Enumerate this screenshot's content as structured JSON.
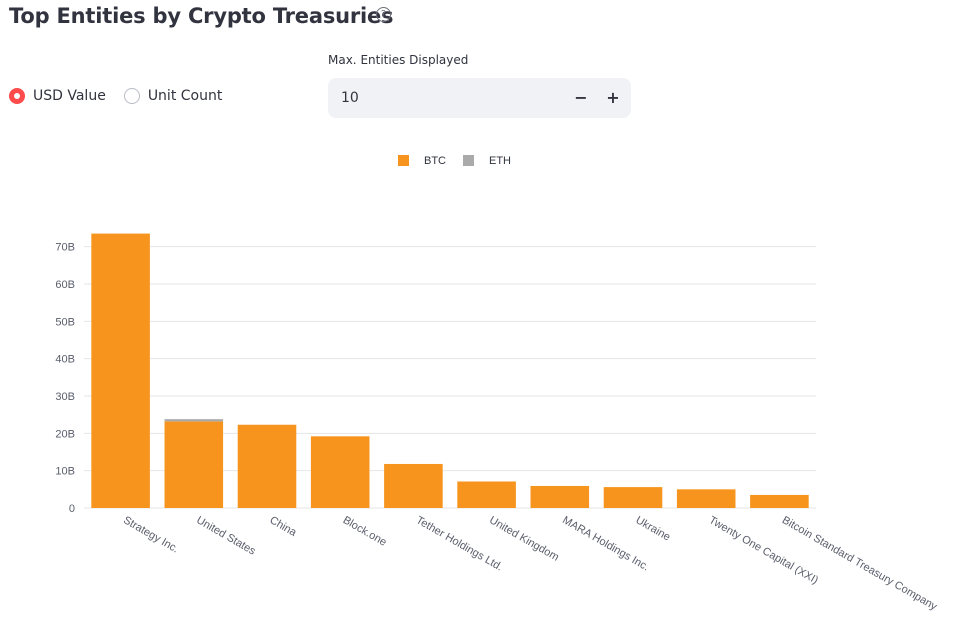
{
  "header": {
    "title": "Top Entities by Crypto Treasuries",
    "help_icon": "?"
  },
  "controls": {
    "radio_options": [
      "USD Value",
      "Unit Count"
    ],
    "selected": "USD Value",
    "max_entities_label": "Max. Entities Displayed",
    "max_entities_value": "10",
    "minus_label": "−",
    "plus_label": "+"
  },
  "colors": {
    "btc": "#f7941d",
    "eth": "#aaaaaa",
    "accent": "#ff4b4b"
  },
  "chart_data": {
    "type": "bar",
    "stacked": true,
    "title": "",
    "xlabel": "",
    "ylabel": "",
    "ylim": [
      0,
      75
    ],
    "y_ticks": [
      0,
      10,
      20,
      30,
      40,
      50,
      60,
      70
    ],
    "y_tick_labels": [
      "0",
      "10B",
      "20B",
      "30B",
      "40B",
      "50B",
      "60B",
      "70B"
    ],
    "legend": [
      "BTC",
      "ETH"
    ],
    "legend_position": "top-center",
    "categories": [
      "Strategy Inc.",
      "United States",
      "China",
      "Block.one",
      "Tether Holdings Ltd.",
      "United Kingdom",
      "MARA Holdings Inc.",
      "Ukraine",
      "Twenty One Capital (XXI)",
      "Bitcoin Standard Treasury Company"
    ],
    "series": [
      {
        "name": "BTC",
        "values": [
          73.5,
          23.2,
          22.3,
          19.2,
          11.8,
          7.1,
          5.9,
          5.6,
          5.0,
          3.5
        ]
      },
      {
        "name": "ETH",
        "values": [
          0,
          0.6,
          0,
          0,
          0,
          0,
          0,
          0,
          0,
          0
        ]
      }
    ]
  }
}
